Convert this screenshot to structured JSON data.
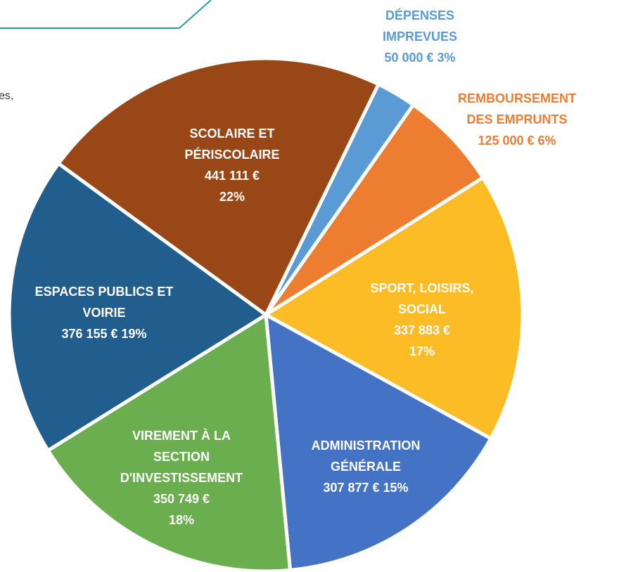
{
  "side_text": "es,",
  "chart_data": {
    "type": "pie",
    "categories": [
      "DÉPENSES IMPREVUES",
      "REMBOURSEMENT DES EMPRUNTS",
      "SPORT, LOISIRS, SOCIAL",
      "ADMINISTRATION GÉNÉRALE",
      "VIREMENT À LA SECTION D'INVESTISSEMENT",
      "ESPACES PUBLICS ET VOIRIE",
      "SCOLAIRE ET PÉRISCOLAIRE"
    ],
    "values": [
      50000,
      125000,
      337883,
      307877,
      350749,
      376155,
      441111
    ],
    "value_labels": [
      "50 000 €",
      "125 000 €",
      "337 883 €",
      "307 877 €",
      "350 749 €",
      "376 155 €",
      "441 111 €"
    ],
    "percent_labels": [
      "3%",
      "6%",
      "17%",
      "15%",
      "18%",
      "19%",
      "22%"
    ],
    "colors": [
      "#5b9bd5",
      "#ed7d31",
      "#fbbc26",
      "#4472c4",
      "#6aae4f",
      "#215e8e",
      "#9a4718"
    ]
  }
}
